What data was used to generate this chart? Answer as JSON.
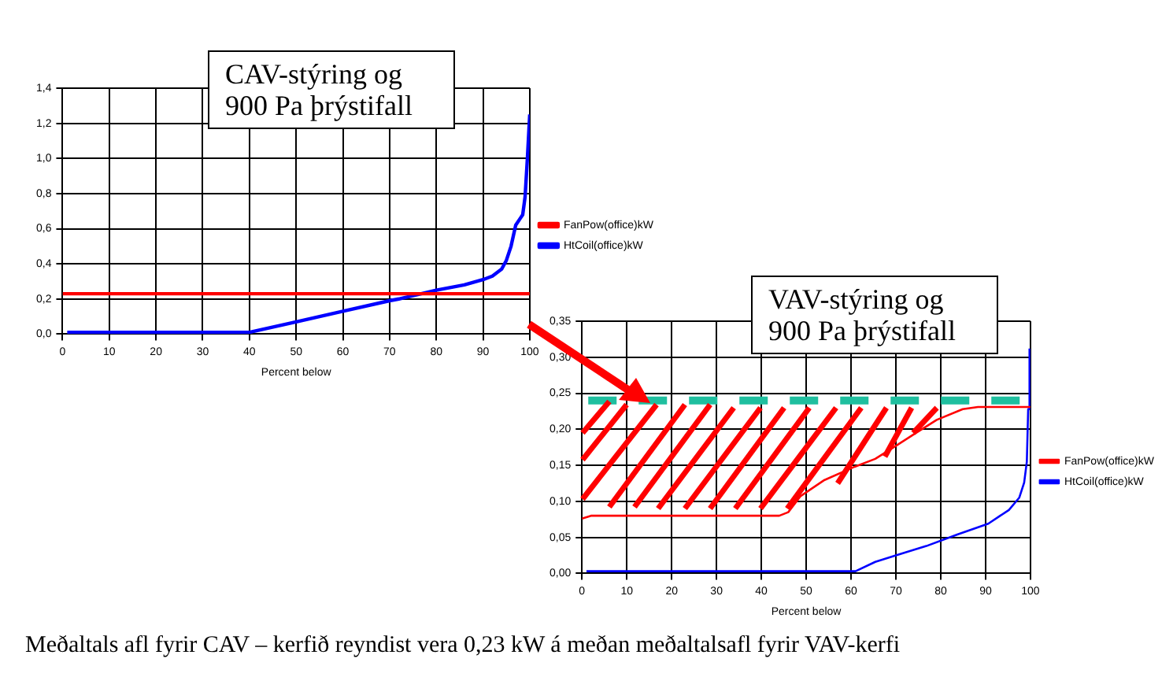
{
  "chart_data": [
    {
      "type": "line",
      "xlabel": "Percent below",
      "annotations": [
        "CAV-stýring og 900 Pa þrýstifall"
      ],
      "xlim": [
        0,
        100
      ],
      "xticks": [
        0,
        10,
        20,
        30,
        40,
        50,
        60,
        70,
        80,
        90,
        100
      ],
      "ylim": [
        0,
        1.4
      ],
      "yticks": [
        {
          "value": 0,
          "label": "0,0"
        },
        {
          "value": 0.2,
          "label": "0,2"
        },
        {
          "value": 0.4,
          "label": "0,4"
        },
        {
          "value": 0.6,
          "label": "0,6"
        },
        {
          "value": 0.8,
          "label": "0,8"
        },
        {
          "value": 1.0,
          "label": "1,0"
        },
        {
          "value": 1.2,
          "label": "1,2"
        },
        {
          "value": 1.4,
          "label": "1,4"
        }
      ],
      "grid": true,
      "legend": "right",
      "marker": "none",
      "series": [
        {
          "name": "FanPow(office)kW",
          "color": "#ff0000",
          "x": [
            0,
            100
          ],
          "values": [
            0.23,
            0.23
          ]
        },
        {
          "name": "HtCoil(office)kW",
          "color": "#0000ff",
          "x": [
            1,
            40,
            50,
            60,
            70,
            72,
            80,
            86,
            90,
            92,
            94,
            95,
            96,
            97,
            98,
            98.5,
            99,
            99.5,
            100
          ],
          "values": [
            0.01,
            0.01,
            0.07,
            0.13,
            0.19,
            0.2,
            0.25,
            0.28,
            0.31,
            0.33,
            0.37,
            0.42,
            0.5,
            0.62,
            0.66,
            0.68,
            0.78,
            1.0,
            1.25
          ]
        }
      ]
    },
    {
      "type": "line",
      "xlabel": "Percent below",
      "annotations": [
        "VAV-stýring og 900 Pa þrýstifall",
        "Meðaltals afl fyrir CAV – kerfið reyndist vera 0,23 kW á meðan meðaltalsafl fyrir VAV-kerfi"
      ],
      "xlim": [
        0,
        100
      ],
      "xticks": [
        0,
        10,
        20,
        30,
        40,
        50,
        60,
        70,
        80,
        90,
        100
      ],
      "ylim": [
        0,
        0.35
      ],
      "yticks": [
        {
          "value": 0,
          "label": "0,00"
        },
        {
          "value": 0.05,
          "label": "0,05"
        },
        {
          "value": 0.1,
          "label": "0,10"
        },
        {
          "value": 0.15,
          "label": "0,15"
        },
        {
          "value": 0.2,
          "label": "0,20"
        },
        {
          "value": 0.25,
          "label": "0,25"
        },
        {
          "value": 0.3,
          "label": "0,30"
        },
        {
          "value": 0.35,
          "label": "0,35"
        }
      ],
      "grid": true,
      "legend": "right",
      "marker": "none",
      "ref_lines": [
        {
          "axis": "y",
          "value": 0.24,
          "color": "#1fbf9f",
          "line_style": "dashed"
        }
      ],
      "series": [
        {
          "name": "FanPow(office)kW",
          "color": "#ff0000",
          "x": [
            0,
            2,
            44,
            46,
            48.7,
            53.9,
            60.8,
            65.4,
            70,
            74.5,
            79.1,
            84.9,
            88.3,
            100
          ],
          "values": [
            0.076,
            0.08,
            0.08,
            0.085,
            0.107,
            0.129,
            0.148,
            0.159,
            0.177,
            0.195,
            0.213,
            0.228,
            0.231,
            0.231
          ]
        },
        {
          "name": "HtCoil(office)kW",
          "color": "#0000ff",
          "x": [
            1,
            61,
            65.4,
            70,
            76.8,
            83.7,
            90.6,
            95.2,
            97.5,
            98.6,
            99.2,
            99.5,
            99.8
          ],
          "values": [
            0.003,
            0.003,
            0.016,
            0.025,
            0.038,
            0.054,
            0.069,
            0.088,
            0.105,
            0.126,
            0.155,
            0.228,
            0.312
          ]
        }
      ]
    }
  ]
}
